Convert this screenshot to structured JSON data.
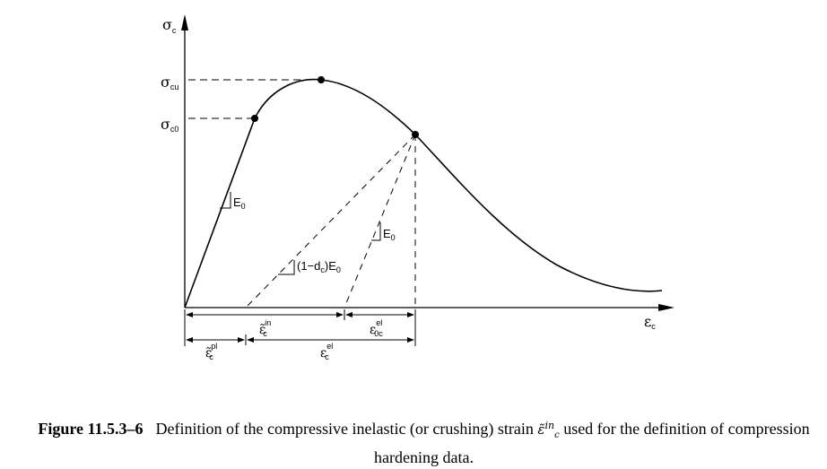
{
  "labels": {
    "y_axis": "σ",
    "y_axis_sub": "c",
    "x_axis": "ε",
    "x_axis_sub": "c",
    "sigma_cu": "σ",
    "sigma_cu_sub": "cu",
    "sigma_c0": "σ",
    "sigma_c0_sub": "c0",
    "e0_initial": "E",
    "e0_initial_sub": "0",
    "e0_unload": "E",
    "e0_unload_sub": "0",
    "damaged_modulus": "(1−d",
    "damaged_modulus_sub": "c",
    "damaged_modulus_tail": ")E",
    "damaged_modulus_tail_sub": "0",
    "eps_in": "ε̃",
    "eps_in_sub": "c",
    "eps_in_sup": "in",
    "eps_0c_el": "ε",
    "eps_0c_el_sub": "0c",
    "eps_0c_el_sup": "el",
    "eps_pl": "ε̃",
    "eps_pl_sub": "c",
    "eps_pl_sup": "pl",
    "eps_el": "ε",
    "eps_el_sub": "c",
    "eps_el_sup": "el"
  },
  "caption": {
    "figure_number": "Figure 11.5.3–6",
    "text_before": "Definition of the compressive inelastic (or crushing) strain",
    "symbol_base": "ε̃",
    "symbol_sup": "in",
    "symbol_sub": "c",
    "text_after": "used for the definition of compression hardening data."
  }
}
